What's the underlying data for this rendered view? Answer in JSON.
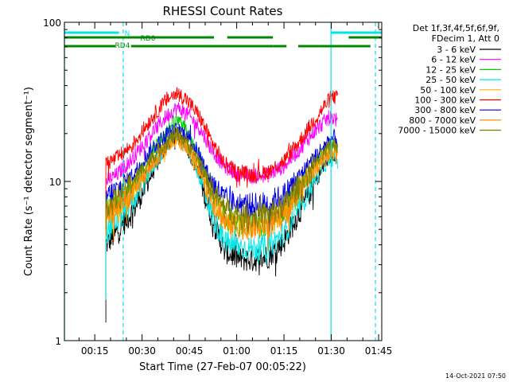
{
  "chart_data": {
    "type": "line",
    "title": "RHESSI Count Rates",
    "xlabel": "Start Time (27-Feb-07 00:05:22)",
    "ylabel": "Count Rate (s⁻¹ detector segment⁻¹)",
    "y_scale": "log",
    "ylim": [
      1,
      100
    ],
    "xlim_minutes": [
      5.37,
      106
    ],
    "x_ticks": [
      {
        "min": 15,
        "label": "00:15"
      },
      {
        "min": 30,
        "label": "00:30"
      },
      {
        "min": 45,
        "label": "00:45"
      },
      {
        "min": 60,
        "label": "01:00"
      },
      {
        "min": 75,
        "label": "01:15"
      },
      {
        "min": 90,
        "label": "01:30"
      },
      {
        "min": 105,
        "label": "01:45"
      }
    ],
    "y_ticks": [
      {
        "value": 1,
        "label": "1"
      },
      {
        "value": 10,
        "label": "10"
      },
      {
        "value": 100,
        "label": "100"
      }
    ],
    "legend_header": [
      "Det 1f,3f,4f,5f,6f,9f,",
      "FDecim 1, Att 0"
    ],
    "legend_placement": "top-right outside plot",
    "x_knots": [
      18.5,
      22,
      27,
      33,
      38,
      41,
      44,
      48,
      52,
      56,
      60,
      65,
      70,
      75,
      80,
      85,
      89,
      91,
      92
    ],
    "series": [
      {
        "name": "3 - 6 keV",
        "color": "#000000",
        "start": 1.3,
        "values": [
          4.0,
          4.8,
          6.5,
          11,
          17,
          20,
          17,
          11,
          6.0,
          3.7,
          3.3,
          3.2,
          3.4,
          4.2,
          6.5,
          10,
          14,
          15,
          15
        ]
      },
      {
        "name": "6 - 12 keV",
        "color": "#ff00ff",
        "start": 6.0,
        "values": [
          10,
          11,
          14,
          20,
          26,
          29,
          27,
          22,
          16,
          12.5,
          11.2,
          10.8,
          11,
          12.5,
          16,
          21,
          25,
          25,
          24
        ]
      },
      {
        "name": "12 - 25 keV",
        "color": "#00cc00",
        "start": 4.0,
        "values": [
          6.5,
          7.2,
          9.5,
          15,
          21,
          24,
          21,
          14,
          8.5,
          6.0,
          5.4,
          5.3,
          5.5,
          6.4,
          9,
          13,
          16.5,
          17,
          16
        ]
      },
      {
        "name": "25 - 50 keV",
        "color": "#00e5e5",
        "start": 1.8,
        "values": [
          4.8,
          5.6,
          7.5,
          12,
          17,
          19.5,
          17,
          11,
          6.3,
          4.2,
          3.9,
          3.8,
          3.9,
          4.7,
          7,
          10.5,
          13.5,
          14,
          13
        ]
      },
      {
        "name": "50 - 100 keV",
        "color": "#ffb000",
        "start": 4.5,
        "values": [
          6.0,
          7.0,
          9.0,
          13,
          17,
          19,
          17,
          13,
          8.5,
          6.0,
          5.5,
          5.4,
          5.6,
          6.5,
          9,
          12.5,
          15,
          16,
          16
        ]
      },
      {
        "name": "100 - 300 keV",
        "color": "#ff0000",
        "start": 8.0,
        "values": [
          13,
          14,
          17,
          25,
          33,
          36,
          33,
          26,
          18,
          13,
          11.5,
          11,
          11.5,
          13.5,
          18,
          25,
          32,
          34,
          33
        ]
      },
      {
        "name": "300 - 800 keV",
        "color": "#0000ee",
        "start": 5.5,
        "values": [
          8.0,
          8.8,
          11,
          16,
          20,
          21,
          20,
          15,
          10,
          7.8,
          7.2,
          7.1,
          7.3,
          8.2,
          11,
          14.5,
          18,
          19,
          18
        ]
      },
      {
        "name": "800 - 7000 keV",
        "color": "#ff8c00",
        "start": 4.5,
        "values": [
          6.0,
          6.8,
          8.5,
          12.5,
          16.5,
          18.5,
          16.5,
          12,
          7.8,
          5.6,
          5.2,
          5.1,
          5.3,
          6.1,
          8.5,
          12,
          14.5,
          15.5,
          15
        ]
      },
      {
        "name": "7000 - 15000 keV",
        "color": "#808000",
        "start": 5.0,
        "values": [
          7.0,
          7.8,
          10,
          14,
          18,
          20,
          18,
          13.5,
          9,
          6.8,
          6.2,
          6.0,
          6.2,
          7.0,
          9.5,
          13,
          16,
          17,
          17
        ]
      }
    ],
    "flags": [
      {
        "label": "N",
        "color": "#00e5e5",
        "segments": [
          [
            5.37,
            22.7
          ],
          [
            89.9,
            106
          ]
        ]
      },
      {
        "label": "RD0",
        "color": "#008800",
        "segments": [
          [
            5.37,
            52.8
          ],
          [
            57,
            71.5
          ],
          [
            95.5,
            106
          ]
        ]
      },
      {
        "label": "RD4",
        "color": "#008800",
        "segments": [
          [
            5.37,
            21.5
          ],
          [
            26.5,
            71.5
          ],
          [
            71.5,
            75.8
          ],
          [
            79.5,
            102.4
          ]
        ]
      }
    ],
    "vertical_markers": [
      {
        "min": 5.37,
        "color": "#00e5e5",
        "style": "solid"
      },
      {
        "min": 24.0,
        "color": "#00e5e5",
        "style": "dashed"
      },
      {
        "min": 89.9,
        "color": "#00e5e5",
        "style": "solid"
      },
      {
        "min": 104.0,
        "color": "#00e5e5",
        "style": "dashed"
      }
    ]
  },
  "footer": {
    "timestamp": "14-Oct-2021 07:50"
  }
}
